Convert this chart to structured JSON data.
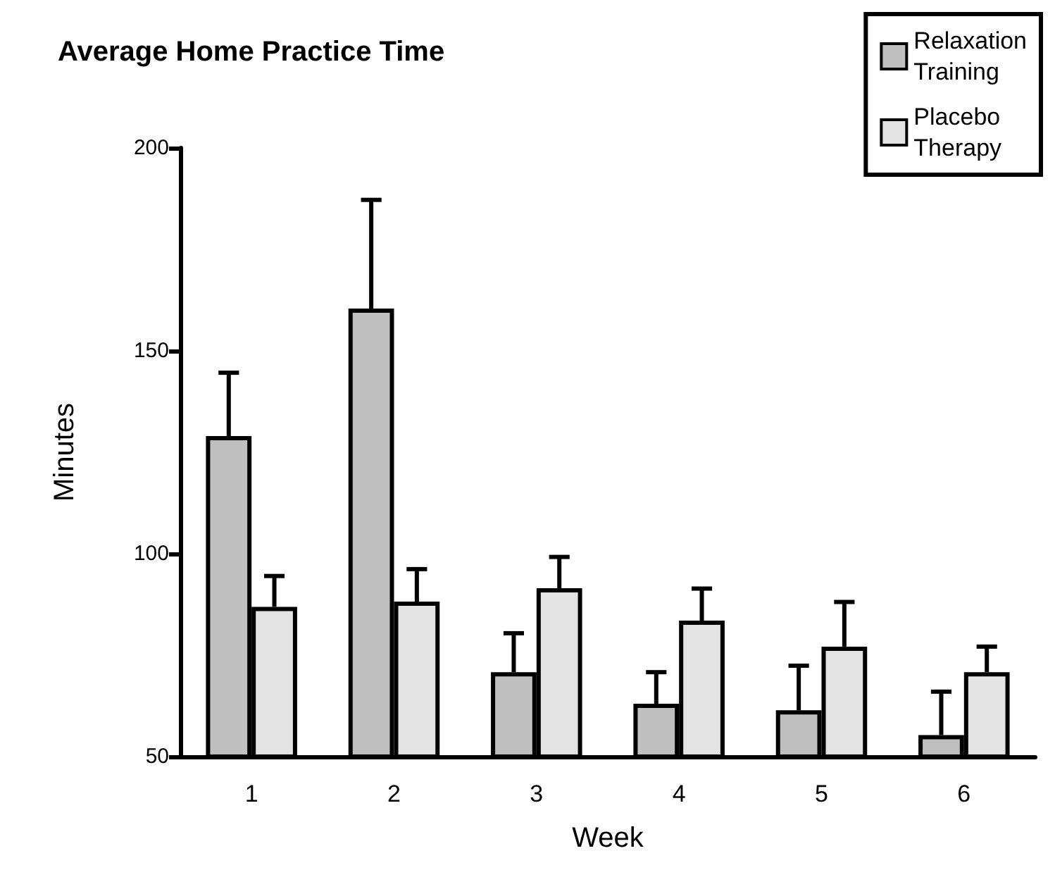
{
  "chart_data": {
    "type": "bar",
    "title": "Average Home Practice Time",
    "xlabel": "Week",
    "ylabel": "Minutes",
    "categories": [
      "1",
      "2",
      "3",
      "4",
      "5",
      "6"
    ],
    "series": [
      {
        "name": "Relaxation Training",
        "color": "#bfbfbf",
        "values": [
          129,
          160.4,
          70.8,
          63,
          61.4,
          55.3
        ],
        "errors": [
          [
            129,
            144.6
          ],
          [
            160.4,
            187.2
          ],
          [
            70.8,
            80.4
          ],
          [
            63,
            70.8
          ],
          [
            61.4,
            72.4
          ],
          [
            55.3,
            66
          ]
        ]
      },
      {
        "name": "Placebo Therapy",
        "color": "#e3e3e3",
        "values": [
          86.9,
          88.2,
          91.5,
          83.5,
          77.1,
          70.8
        ],
        "errors": [
          [
            86.9,
            94.5
          ],
          [
            88.2,
            96.2
          ],
          [
            91.5,
            99.2
          ],
          [
            83.5,
            91.4
          ],
          [
            77.1,
            88.1
          ],
          [
            70.8,
            77.1
          ]
        ]
      }
    ],
    "ylim": [
      50,
      200
    ],
    "yticks": [
      50,
      100,
      150,
      200
    ],
    "grid": false,
    "legend": "top right"
  }
}
